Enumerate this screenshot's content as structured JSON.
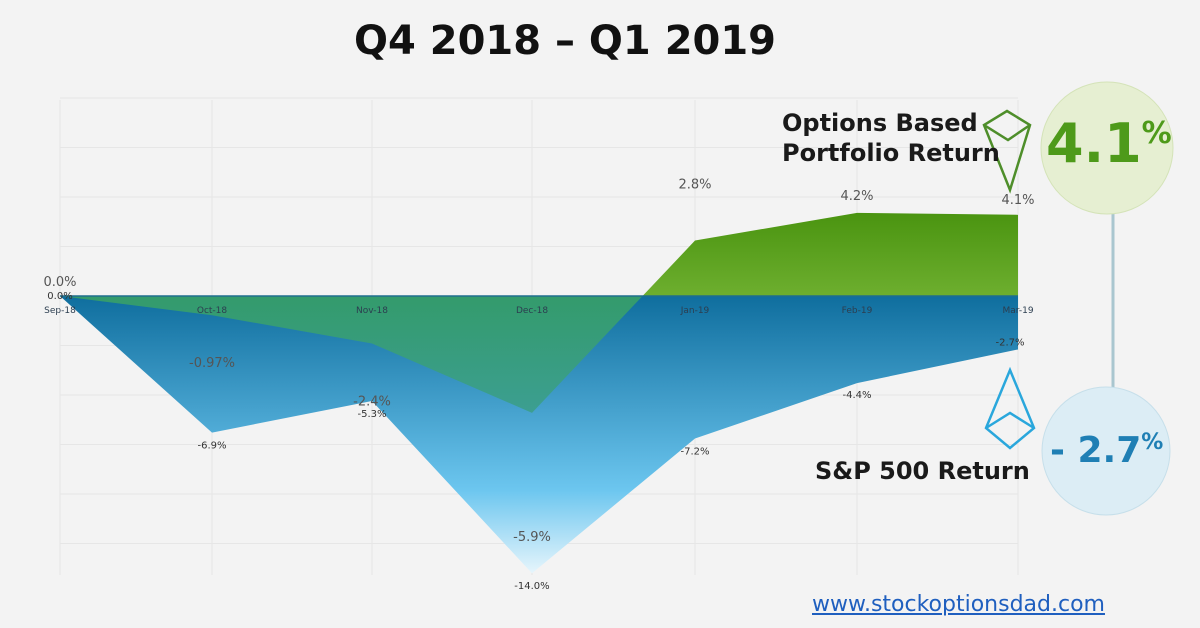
{
  "chart_data": {
    "type": "area",
    "title": "Q4 2018 – Q1 2019",
    "categories": [
      "Sep-18",
      "Oct-18",
      "Nov-18",
      "Dec-18",
      "Jan-19",
      "Feb-19",
      "Mar-19"
    ],
    "series": [
      {
        "name": "Options Based Portfolio Return",
        "values": [
          0.0,
          -0.97,
          -2.4,
          -5.9,
          2.8,
          4.2,
          4.1
        ],
        "labels": [
          "0.0%",
          "-0.97%",
          "-2.4%",
          "-5.9%",
          "2.8%",
          "4.2%",
          "4.1%"
        ],
        "color": "#4e9a1a"
      },
      {
        "name": "S&P 500 Return",
        "values": [
          0.0,
          -6.9,
          -5.3,
          -14.0,
          -7.2,
          -4.4,
          -2.7
        ],
        "labels": [
          "0.0%",
          "-6.9%",
          "-5.3%",
          "-14.0%",
          "-7.2%",
          "-4.4%",
          "-2.7%"
        ],
        "color": "#1a7bb0"
      }
    ],
    "ylim": [
      -14,
      10
    ],
    "grid": true,
    "xlabel": "",
    "ylabel": ""
  },
  "callouts": {
    "portfolio_label_line1": "Options Based",
    "portfolio_label_line2": "Portfolio Return",
    "portfolio_value": "4.1",
    "sp_label": "S&P 500 Return",
    "sp_value": "- 2.7",
    "percent": "%"
  },
  "footer": {
    "url": "www.stockoptionsdad.com"
  }
}
